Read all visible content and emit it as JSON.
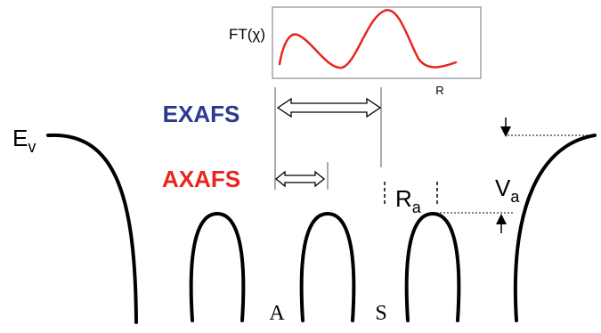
{
  "colors": {
    "exafs": "#2a3a93",
    "axafs": "#e8251e",
    "ft_curve": "#e8251e",
    "ink": "#000000"
  },
  "labels": {
    "ev_main": "E",
    "ev_sub": "v",
    "exafs": "EXAFS",
    "axafs": "AXAFS",
    "ra_main": "R",
    "ra_sub": "a",
    "va_main": "V",
    "va_sub": "a",
    "atom_a": "A",
    "atom_s": "S"
  },
  "inset": {
    "ylabel": "FT(χ)",
    "xlabel": "R"
  }
}
